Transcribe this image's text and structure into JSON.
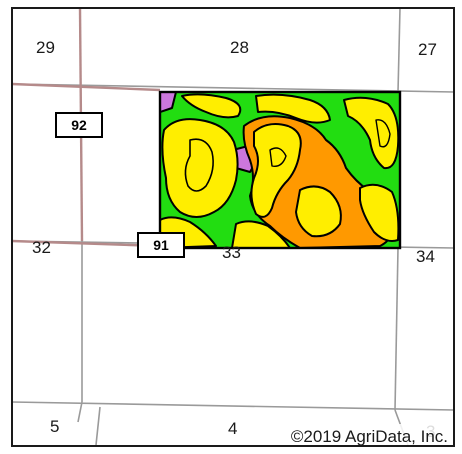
{
  "section_labels": {
    "s29": "29",
    "s28": "28",
    "s27": "27",
    "s32": "32",
    "s33": "33",
    "s34": "34",
    "s5": "5",
    "s4": "4",
    "s3": "3"
  },
  "roads": {
    "r92": "92",
    "r91": "91"
  },
  "copyright": "©2019 AgriData, Inc.",
  "colors": {
    "border": "#1a1a1a",
    "section_line": "#9a9a9a",
    "road_line": "#b58a8a",
    "soil_green": "#22dd11",
    "soil_yellow": "#ffee00",
    "soil_orange": "#ff9900",
    "soil_violet": "#cc77dd",
    "soil_outline": "#000000"
  }
}
